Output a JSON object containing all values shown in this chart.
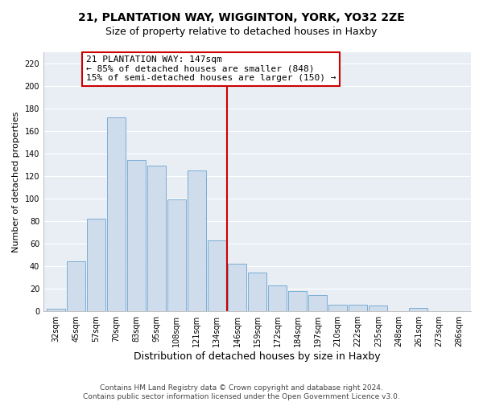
{
  "title": "21, PLANTATION WAY, WIGGINTON, YORK, YO32 2ZE",
  "subtitle": "Size of property relative to detached houses in Haxby",
  "xlabel": "Distribution of detached houses by size in Haxby",
  "ylabel": "Number of detached properties",
  "categories": [
    "32sqm",
    "45sqm",
    "57sqm",
    "70sqm",
    "83sqm",
    "95sqm",
    "108sqm",
    "121sqm",
    "134sqm",
    "146sqm",
    "159sqm",
    "172sqm",
    "184sqm",
    "197sqm",
    "210sqm",
    "222sqm",
    "235sqm",
    "248sqm",
    "261sqm",
    "273sqm",
    "286sqm"
  ],
  "values": [
    2,
    44,
    82,
    172,
    134,
    129,
    99,
    125,
    63,
    42,
    34,
    23,
    18,
    14,
    6,
    6,
    5,
    0,
    3,
    0,
    0
  ],
  "bar_color": "#cfdcec",
  "bar_edge_color": "#7aadd4",
  "vline_color": "#cc0000",
  "annotation_title": "21 PLANTATION WAY: 147sqm",
  "annotation_line1": "← 85% of detached houses are smaller (848)",
  "annotation_line2": "15% of semi-detached houses are larger (150) →",
  "annotation_box_color": "#cc0000",
  "ylim": [
    0,
    230
  ],
  "yticks": [
    0,
    20,
    40,
    60,
    80,
    100,
    120,
    140,
    160,
    180,
    200,
    220
  ],
  "footnote1": "Contains HM Land Registry data © Crown copyright and database right 2024.",
  "footnote2": "Contains public sector information licensed under the Open Government Licence v3.0.",
  "bg_color": "#ffffff",
  "plot_bg_color": "#e8eef4",
  "grid_color": "#ffffff",
  "title_fontsize": 10,
  "xlabel_fontsize": 9,
  "ylabel_fontsize": 8,
  "tick_fontsize": 7,
  "footnote_fontsize": 6.5
}
